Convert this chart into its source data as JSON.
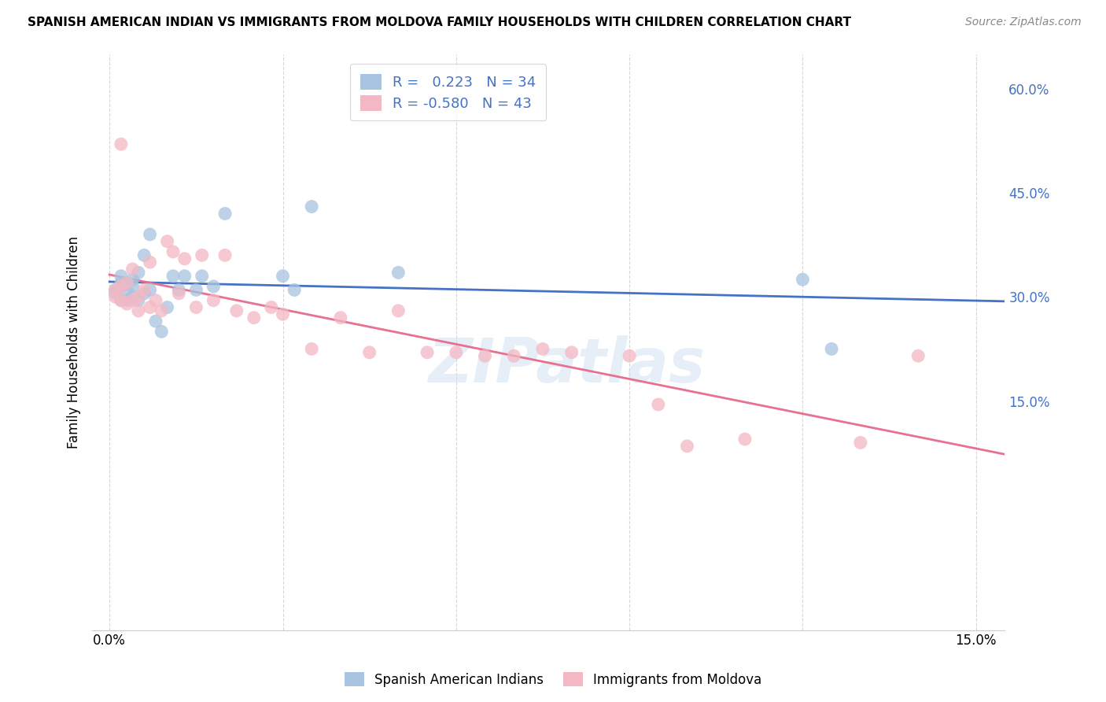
{
  "title": "SPANISH AMERICAN INDIAN VS IMMIGRANTS FROM MOLDOVA FAMILY HOUSEHOLDS WITH CHILDREN CORRELATION CHART",
  "source": "Source: ZipAtlas.com",
  "ylabel": "Family Households with Children",
  "blue_R": 0.223,
  "blue_N": 34,
  "pink_R": -0.58,
  "pink_N": 43,
  "blue_color": "#a8c4e0",
  "pink_color": "#f4b8c4",
  "blue_line_color": "#4472c4",
  "pink_line_color": "#e87090",
  "watermark": "ZIPatlas",
  "blue_scatter_x": [
    0.001,
    0.001,
    0.002,
    0.002,
    0.002,
    0.002,
    0.003,
    0.003,
    0.003,
    0.004,
    0.004,
    0.004,
    0.005,
    0.005,
    0.006,
    0.006,
    0.007,
    0.007,
    0.008,
    0.009,
    0.01,
    0.011,
    0.012,
    0.013,
    0.015,
    0.016,
    0.018,
    0.02,
    0.03,
    0.032,
    0.035,
    0.05,
    0.12,
    0.125
  ],
  "blue_scatter_y": [
    0.305,
    0.31,
    0.295,
    0.315,
    0.32,
    0.33,
    0.295,
    0.31,
    0.32,
    0.3,
    0.315,
    0.325,
    0.295,
    0.335,
    0.305,
    0.36,
    0.31,
    0.39,
    0.265,
    0.25,
    0.285,
    0.33,
    0.31,
    0.33,
    0.31,
    0.33,
    0.315,
    0.42,
    0.33,
    0.31,
    0.43,
    0.335,
    0.325,
    0.225
  ],
  "pink_scatter_x": [
    0.001,
    0.001,
    0.002,
    0.002,
    0.003,
    0.003,
    0.004,
    0.004,
    0.005,
    0.005,
    0.006,
    0.007,
    0.007,
    0.008,
    0.009,
    0.01,
    0.011,
    0.012,
    0.013,
    0.015,
    0.016,
    0.018,
    0.02,
    0.022,
    0.025,
    0.028,
    0.03,
    0.035,
    0.04,
    0.045,
    0.05,
    0.055,
    0.06,
    0.065,
    0.07,
    0.075,
    0.08,
    0.09,
    0.095,
    0.1,
    0.11,
    0.13,
    0.14
  ],
  "pink_scatter_y": [
    0.3,
    0.31,
    0.295,
    0.315,
    0.29,
    0.32,
    0.295,
    0.34,
    0.28,
    0.3,
    0.31,
    0.285,
    0.35,
    0.295,
    0.28,
    0.38,
    0.365,
    0.305,
    0.355,
    0.285,
    0.36,
    0.295,
    0.36,
    0.28,
    0.27,
    0.285,
    0.275,
    0.225,
    0.27,
    0.22,
    0.28,
    0.22,
    0.22,
    0.215,
    0.215,
    0.225,
    0.22,
    0.215,
    0.145,
    0.085,
    0.095,
    0.09,
    0.215
  ],
  "pink_outlier_x": [
    0.002
  ],
  "pink_outlier_y": [
    0.52
  ],
  "background_color": "#ffffff",
  "grid_color": "#cccccc",
  "xlim_min": -0.003,
  "xlim_max": 0.155,
  "ylim_min": -0.18,
  "ylim_max": 0.65,
  "x_tick_pos": [
    0.0,
    0.03,
    0.06,
    0.09,
    0.12,
    0.15
  ],
  "x_tick_labels": [
    "0.0%",
    "",
    "",
    "",
    "",
    "15.0%"
  ],
  "y_tick_pos": [
    0.15,
    0.3,
    0.45,
    0.6
  ],
  "y_tick_labels": [
    "15.0%",
    "30.0%",
    "45.0%",
    "60.0%"
  ]
}
